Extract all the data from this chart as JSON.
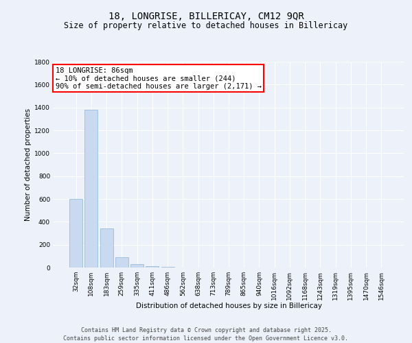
{
  "title": "18, LONGRISE, BILLERICAY, CM12 9QR",
  "subtitle": "Size of property relative to detached houses in Billericay",
  "xlabel": "Distribution of detached houses by size in Billericay",
  "ylabel": "Number of detached properties",
  "categories": [
    "32sqm",
    "108sqm",
    "183sqm",
    "259sqm",
    "335sqm",
    "411sqm",
    "486sqm",
    "562sqm",
    "638sqm",
    "713sqm",
    "789sqm",
    "865sqm",
    "940sqm",
    "1016sqm",
    "1092sqm",
    "1168sqm",
    "1243sqm",
    "1319sqm",
    "1395sqm",
    "1470sqm",
    "1546sqm"
  ],
  "values": [
    600,
    1380,
    340,
    90,
    28,
    14,
    5,
    0,
    0,
    0,
    0,
    0,
    0,
    0,
    0,
    0,
    0,
    0,
    0,
    0,
    0
  ],
  "bar_color": "#c9d9f0",
  "bar_edge_color": "#8ab4d8",
  "annotation_box_text": "18 LONGRISE: 86sqm\n← 10% of detached houses are smaller (244)\n90% of semi-detached houses are larger (2,171) →",
  "annotation_box_color": "red",
  "background_color": "#edf2fa",
  "plot_bg_color": "#edf2fa",
  "grid_color": "#ffffff",
  "ylim": [
    0,
    1800
  ],
  "yticks": [
    0,
    200,
    400,
    600,
    800,
    1000,
    1200,
    1400,
    1600,
    1800
  ],
  "footer": "Contains HM Land Registry data © Crown copyright and database right 2025.\nContains public sector information licensed under the Open Government Licence v3.0.",
  "title_fontsize": 10,
  "subtitle_fontsize": 8.5,
  "xlabel_fontsize": 7.5,
  "ylabel_fontsize": 7.5,
  "tick_fontsize": 6.5,
  "footer_fontsize": 6,
  "annotation_fontsize": 7.5
}
